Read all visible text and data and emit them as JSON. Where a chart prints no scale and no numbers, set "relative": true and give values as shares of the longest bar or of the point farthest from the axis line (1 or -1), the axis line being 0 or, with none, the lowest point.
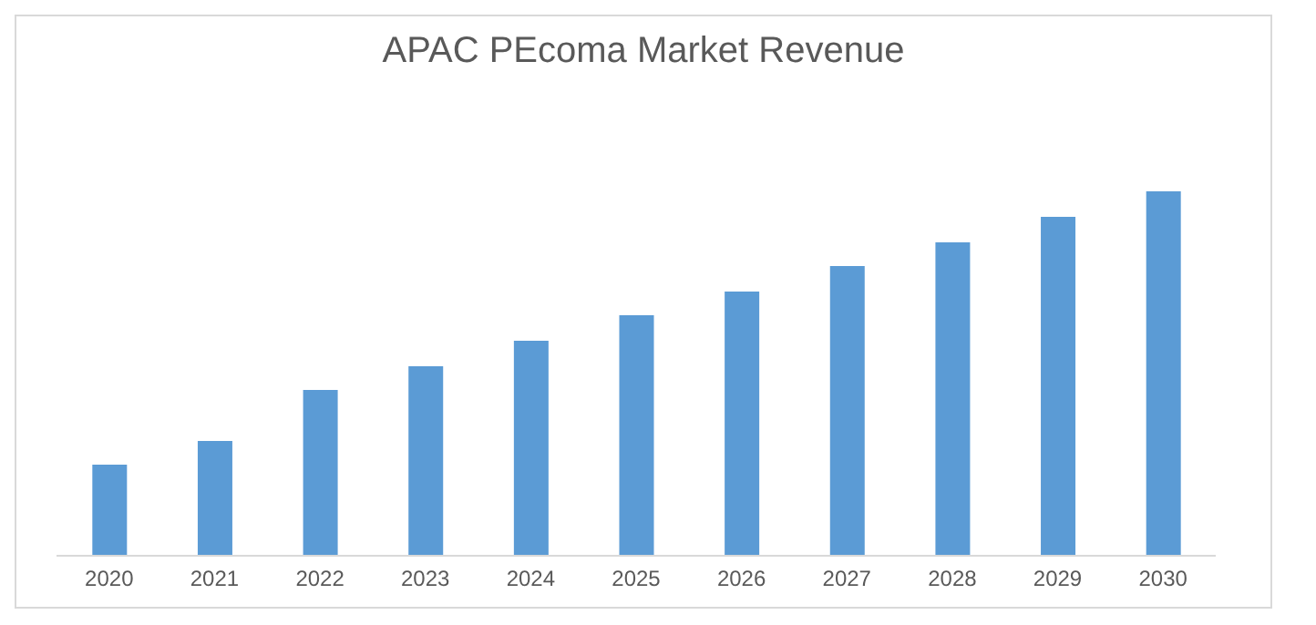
{
  "chart_data": {
    "type": "bar",
    "title": "APAC PEcoma Market Revenue",
    "relative": true,
    "categories": [
      "2020",
      "2021",
      "2022",
      "2023",
      "2024",
      "2025",
      "2026",
      "2027",
      "2028",
      "2029",
      "2030"
    ],
    "values": [
      0.25,
      0.315,
      0.455,
      0.52,
      0.59,
      0.66,
      0.725,
      0.795,
      0.86,
      0.93,
      1
    ],
    "color": "#5b9bd5",
    "grid": false,
    "legend": false
  }
}
